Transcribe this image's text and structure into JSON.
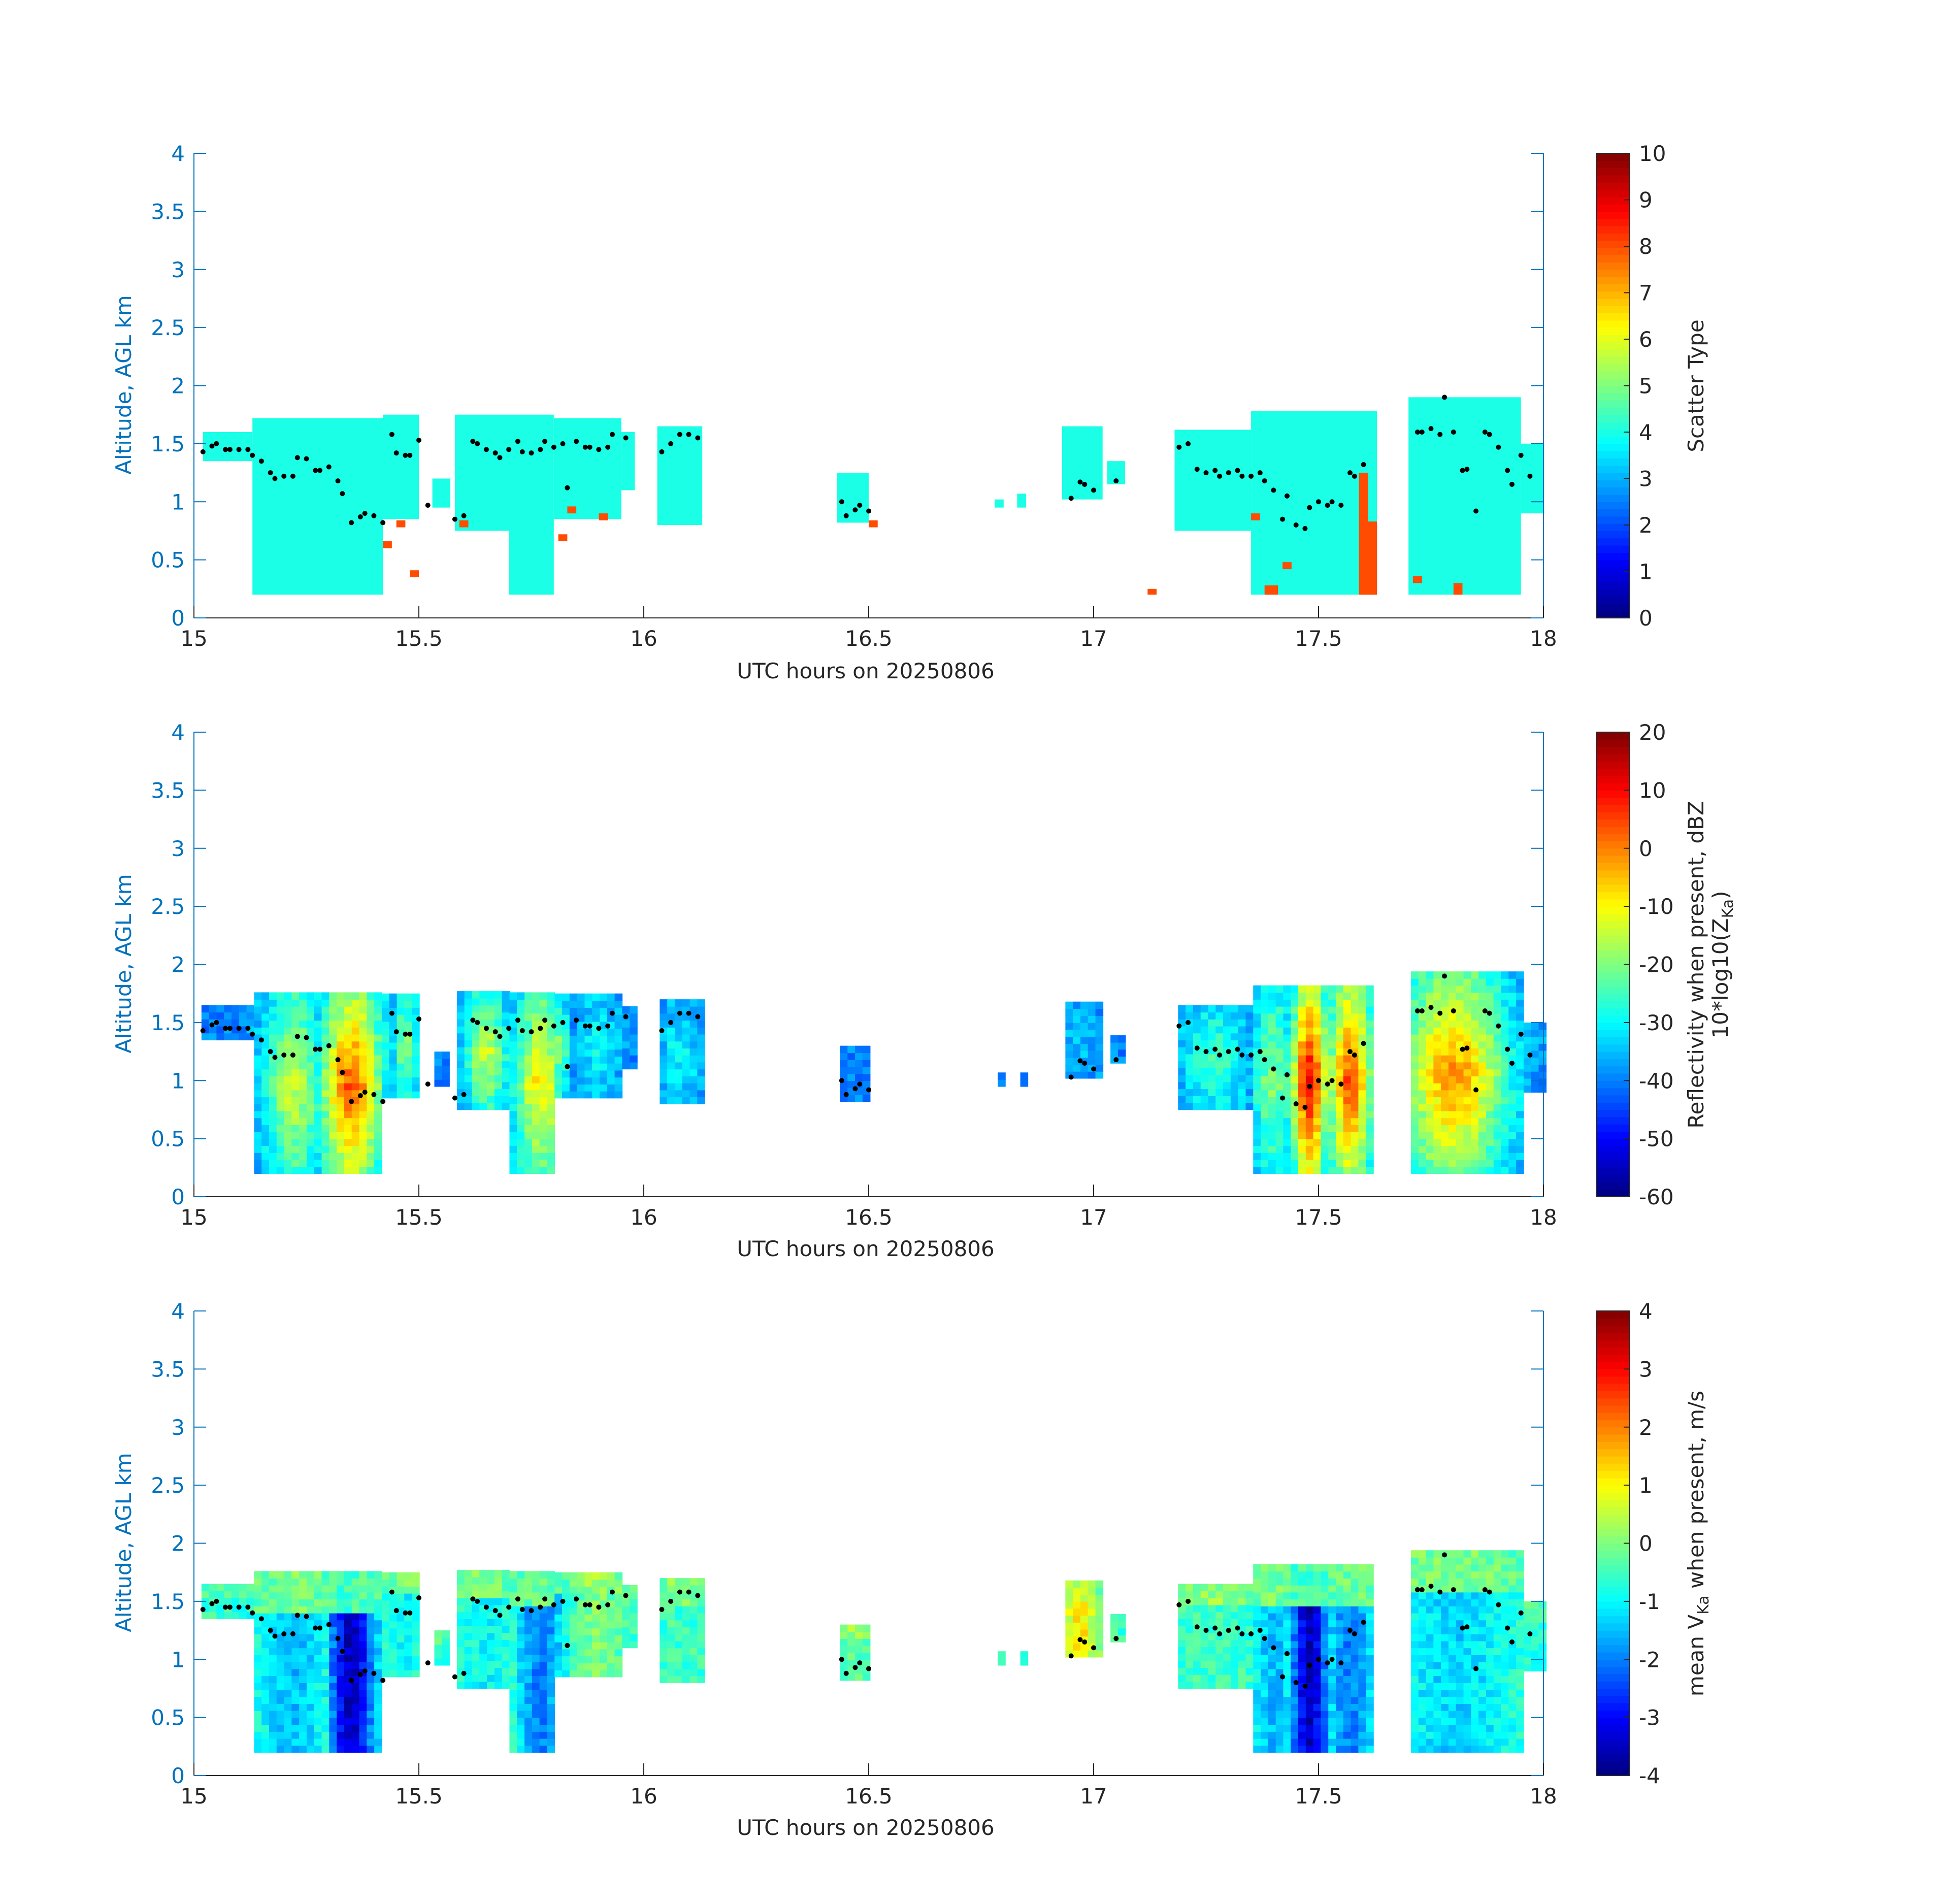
{
  "figure": {
    "xlabel": "UTC hours on 20250806",
    "ylabel": "Altitude, AGL km",
    "colormap": "jet",
    "axis_color": "#0072BD"
  },
  "chart_data": [
    {
      "type": "heatmap",
      "xlabel": "UTC hours on 20250806",
      "ylabel": "Altitude, AGL km",
      "xlim": [
        15,
        18
      ],
      "ylim": [
        0,
        4
      ],
      "xticks": [
        15,
        15.5,
        16,
        16.5,
        17,
        17.5,
        18
      ],
      "xtick_labels": [
        "15",
        "15.5",
        "16",
        "16.5",
        "17",
        "17.5",
        "18"
      ],
      "yticks": [
        0,
        0.5,
        1,
        1.5,
        2,
        2.5,
        3,
        3.5,
        4
      ],
      "ytick_labels": [
        "0",
        "0.5",
        "1",
        "1.5",
        "2",
        "2.5",
        "3",
        "3.5",
        "4"
      ],
      "colorbar": {
        "label": "Scatter Type",
        "range": [
          0,
          10
        ],
        "ticks": [
          0,
          1,
          2,
          3,
          4,
          5,
          6,
          7,
          8,
          9,
          10
        ],
        "tick_labels": [
          "0",
          "1",
          "2",
          "3",
          "4",
          "5",
          "6",
          "7",
          "8",
          "9",
          "10"
        ]
      },
      "cloud_regions": [
        {
          "t0": 15.02,
          "t1": 15.13,
          "base": 1.35,
          "top": 1.6,
          "value": 4
        },
        {
          "t0": 15.13,
          "t1": 15.42,
          "base": 0.2,
          "top": 1.72,
          "value": 4
        },
        {
          "t0": 15.42,
          "t1": 15.5,
          "base": 0.85,
          "top": 1.75,
          "value": 4
        },
        {
          "t0": 15.53,
          "t1": 15.57,
          "base": 0.95,
          "top": 1.2,
          "value": 4
        },
        {
          "t0": 15.58,
          "t1": 15.7,
          "base": 0.75,
          "top": 1.75,
          "value": 4
        },
        {
          "t0": 15.7,
          "t1": 15.8,
          "base": 0.2,
          "top": 1.75,
          "value": 4
        },
        {
          "t0": 15.8,
          "t1": 15.95,
          "base": 0.85,
          "top": 1.72,
          "value": 4
        },
        {
          "t0": 15.95,
          "t1": 15.98,
          "base": 1.1,
          "top": 1.6,
          "value": 4
        },
        {
          "t0": 16.03,
          "t1": 16.13,
          "base": 0.8,
          "top": 1.65,
          "value": 4
        },
        {
          "t0": 16.43,
          "t1": 16.5,
          "base": 0.82,
          "top": 1.25,
          "value": 4
        },
        {
          "t0": 16.78,
          "t1": 16.8,
          "base": 0.95,
          "top": 1.02,
          "value": 4
        },
        {
          "t0": 16.83,
          "t1": 16.85,
          "base": 0.95,
          "top": 1.07,
          "value": 4
        },
        {
          "t0": 16.93,
          "t1": 17.02,
          "base": 1.02,
          "top": 1.65,
          "value": 4
        },
        {
          "t0": 17.03,
          "t1": 17.07,
          "base": 1.15,
          "top": 1.35,
          "value": 4
        },
        {
          "t0": 17.18,
          "t1": 17.35,
          "base": 0.75,
          "top": 1.62,
          "value": 4
        },
        {
          "t0": 17.35,
          "t1": 17.63,
          "base": 0.2,
          "top": 1.78,
          "value": 4
        },
        {
          "t0": 17.7,
          "t1": 17.95,
          "base": 0.2,
          "top": 1.9,
          "value": 4
        },
        {
          "t0": 17.95,
          "t1": 18.0,
          "base": 0.9,
          "top": 1.5,
          "value": 4
        },
        {
          "t0": 17.59,
          "t1": 17.61,
          "base": 0.2,
          "top": 1.25,
          "value": 8
        },
        {
          "t0": 17.61,
          "t1": 17.63,
          "base": 0.2,
          "top": 0.83,
          "value": 8
        },
        {
          "t0": 17.38,
          "t1": 17.41,
          "base": 0.2,
          "top": 0.28,
          "value": 8
        },
        {
          "t0": 17.12,
          "t1": 17.14,
          "base": 0.2,
          "top": 0.25,
          "value": 8
        },
        {
          "t0": 15.42,
          "t1": 15.44,
          "base": 0.6,
          "top": 0.66,
          "value": 8
        },
        {
          "t0": 15.45,
          "t1": 15.47,
          "base": 0.78,
          "top": 0.84,
          "value": 8
        },
        {
          "t0": 15.48,
          "t1": 15.5,
          "base": 0.35,
          "top": 0.41,
          "value": 8
        },
        {
          "t0": 15.59,
          "t1": 15.61,
          "base": 0.78,
          "top": 0.84,
          "value": 8
        },
        {
          "t0": 15.81,
          "t1": 15.83,
          "base": 0.66,
          "top": 0.72,
          "value": 8
        },
        {
          "t0": 15.83,
          "t1": 15.85,
          "base": 0.9,
          "top": 0.96,
          "value": 8
        },
        {
          "t0": 15.9,
          "t1": 15.92,
          "base": 0.84,
          "top": 0.9,
          "value": 8
        },
        {
          "t0": 16.5,
          "t1": 16.52,
          "base": 0.78,
          "top": 0.84,
          "value": 8
        },
        {
          "t0": 17.35,
          "t1": 17.37,
          "base": 0.84,
          "top": 0.9,
          "value": 8
        },
        {
          "t0": 17.42,
          "t1": 17.44,
          "base": 0.42,
          "top": 0.48,
          "value": 8
        },
        {
          "t0": 17.71,
          "t1": 17.73,
          "base": 0.3,
          "top": 0.36,
          "value": 8
        },
        {
          "t0": 17.8,
          "t1": 17.82,
          "base": 0.2,
          "top": 0.3,
          "value": 8
        }
      ],
      "cloud_base_points": {
        "t": [
          15.02,
          15.04,
          15.05,
          15.07,
          15.08,
          15.1,
          15.12,
          15.13,
          15.15,
          15.17,
          15.18,
          15.2,
          15.22,
          15.23,
          15.25,
          15.27,
          15.28,
          15.3,
          15.32,
          15.33,
          15.35,
          15.37,
          15.38,
          15.4,
          15.42,
          15.44,
          15.45,
          15.47,
          15.48,
          15.5,
          15.52,
          15.58,
          15.6,
          15.62,
          15.63,
          15.65,
          15.67,
          15.68,
          15.7,
          15.72,
          15.73,
          15.75,
          15.77,
          15.78,
          15.8,
          15.82,
          15.83,
          15.85,
          15.87,
          15.88,
          15.9,
          15.92,
          15.93,
          15.96,
          16.04,
          16.06,
          16.08,
          16.1,
          16.12,
          16.44,
          16.45,
          16.47,
          16.48,
          16.5,
          16.95,
          16.97,
          16.98,
          17.0,
          17.05,
          17.19,
          17.21,
          17.23,
          17.25,
          17.27,
          17.28,
          17.3,
          17.32,
          17.33,
          17.35,
          17.37,
          17.38,
          17.4,
          17.42,
          17.43,
          17.45,
          17.47,
          17.48,
          17.5,
          17.52,
          17.53,
          17.55,
          17.57,
          17.58,
          17.6,
          17.72,
          17.73,
          17.75,
          17.77,
          17.78,
          17.8,
          17.82,
          17.83,
          17.85,
          17.87,
          17.88,
          17.9,
          17.92,
          17.93,
          17.95,
          17.97
        ],
        "alt": [
          1.43,
          1.48,
          1.5,
          1.45,
          1.45,
          1.45,
          1.45,
          1.4,
          1.35,
          1.25,
          1.2,
          1.22,
          1.22,
          1.38,
          1.37,
          1.27,
          1.27,
          1.3,
          1.18,
          1.07,
          0.82,
          0.87,
          0.9,
          0.88,
          0.82,
          1.58,
          1.42,
          1.4,
          1.4,
          1.53,
          0.97,
          0.85,
          0.88,
          1.52,
          1.5,
          1.45,
          1.42,
          1.38,
          1.45,
          1.52,
          1.43,
          1.42,
          1.45,
          1.52,
          1.47,
          1.5,
          1.12,
          1.52,
          1.47,
          1.47,
          1.45,
          1.47,
          1.58,
          1.55,
          1.43,
          1.5,
          1.58,
          1.58,
          1.55,
          1.0,
          0.88,
          0.93,
          0.97,
          0.92,
          1.03,
          1.17,
          1.15,
          1.1,
          1.18,
          1.47,
          1.5,
          1.28,
          1.25,
          1.27,
          1.22,
          1.25,
          1.27,
          1.22,
          1.22,
          1.25,
          1.18,
          1.1,
          0.85,
          1.05,
          0.8,
          0.77,
          0.95,
          1.0,
          0.97,
          1.0,
          0.97,
          1.25,
          1.22,
          1.32,
          1.6,
          1.6,
          1.63,
          1.58,
          1.9,
          1.6,
          1.27,
          1.28,
          0.92,
          1.6,
          1.58,
          1.47,
          1.27,
          1.15,
          1.4,
          1.22
        ]
      }
    },
    {
      "type": "heatmap",
      "xlabel": "UTC hours on 20250806",
      "ylabel": "Altitude, AGL km",
      "xlim": [
        15,
        18
      ],
      "ylim": [
        0,
        4
      ],
      "xticks": [
        15,
        15.5,
        16,
        16.5,
        17,
        17.5,
        18
      ],
      "xtick_labels": [
        "15",
        "15.5",
        "16",
        "16.5",
        "17",
        "17.5",
        "18"
      ],
      "yticks": [
        0,
        0.5,
        1,
        1.5,
        2,
        2.5,
        3,
        3.5,
        4
      ],
      "ytick_labels": [
        "0",
        "0.5",
        "1",
        "1.5",
        "2",
        "2.5",
        "3",
        "3.5",
        "4"
      ],
      "colorbar": {
        "label_line1": "Reflectivity when present, dBZ",
        "label_line2_main": "10*log10(Z",
        "label_line2_sub": "Ka",
        "label_line2_end": ")",
        "range": [
          -60,
          20
        ],
        "ticks": [
          -60,
          -50,
          -40,
          -30,
          -20,
          -10,
          0,
          10,
          20
        ],
        "tick_labels": [
          "-60",
          "-50",
          "-40",
          "-30",
          "-20",
          "-10",
          "0",
          "10",
          "20"
        ]
      },
      "cores": [
        {
          "tc": 15.22,
          "hw": 0.07,
          "peak": -15
        },
        {
          "tc": 15.35,
          "hw": 0.07,
          "peak": 2
        },
        {
          "tc": 15.47,
          "hw": 0.03,
          "peak": -20
        },
        {
          "tc": 15.65,
          "hw": 0.05,
          "peak": -15
        },
        {
          "tc": 15.77,
          "hw": 0.06,
          "peak": -10
        },
        {
          "tc": 15.9,
          "hw": 0.05,
          "peak": -30
        },
        {
          "tc": 16.08,
          "hw": 0.05,
          "peak": -30
        },
        {
          "tc": 16.47,
          "hw": 0.05,
          "peak": -40
        },
        {
          "tc": 16.97,
          "hw": 0.05,
          "peak": -35
        },
        {
          "tc": 17.27,
          "hw": 0.08,
          "peak": -25
        },
        {
          "tc": 17.4,
          "hw": 0.05,
          "peak": -20
        },
        {
          "tc": 17.48,
          "hw": 0.04,
          "peak": 10
        },
        {
          "tc": 17.57,
          "hw": 0.05,
          "peak": 3
        },
        {
          "tc": 17.8,
          "hw": 0.12,
          "peak": -3
        }
      ],
      "cloud_base_points": {
        "same_as_panel": 0
      }
    },
    {
      "type": "heatmap",
      "xlabel": "UTC hours on 20250806",
      "ylabel": "Altitude, AGL km",
      "xlim": [
        15,
        18
      ],
      "ylim": [
        0,
        4
      ],
      "xticks": [
        15,
        15.5,
        16,
        16.5,
        17,
        17.5,
        18
      ],
      "xtick_labels": [
        "15",
        "15.5",
        "16",
        "16.5",
        "17",
        "17.5",
        "18"
      ],
      "yticks": [
        0,
        0.5,
        1,
        1.5,
        2,
        2.5,
        3,
        3.5,
        4
      ],
      "ytick_labels": [
        "0",
        "0.5",
        "1",
        "1.5",
        "2",
        "2.5",
        "3",
        "3.5",
        "4"
      ],
      "colorbar": {
        "label_main": "mean V",
        "label_sub": "Ka",
        "label_end": " when present, m/s",
        "range": [
          -4,
          4
        ],
        "ticks": [
          -4,
          -3,
          -2,
          -1,
          0,
          1,
          2,
          3,
          4
        ],
        "tick_labels": [
          "-4",
          "-3",
          "-2",
          "-1",
          "0",
          "1",
          "2",
          "3",
          "4"
        ]
      },
      "cores": [
        {
          "tc": 15.22,
          "hw": 0.07,
          "peak": -1.5
        },
        {
          "tc": 15.35,
          "hw": 0.05,
          "peak": -3.5
        },
        {
          "tc": 15.47,
          "hw": 0.03,
          "peak": -1.0
        },
        {
          "tc": 15.65,
          "hw": 0.05,
          "peak": -1.0
        },
        {
          "tc": 15.77,
          "hw": 0.05,
          "peak": -2.0
        },
        {
          "tc": 15.9,
          "hw": 0.05,
          "peak": 0.0
        },
        {
          "tc": 16.08,
          "hw": 0.05,
          "peak": -0.5
        },
        {
          "tc": 16.47,
          "hw": 0.05,
          "peak": -0.3
        },
        {
          "tc": 16.97,
          "hw": 0.04,
          "peak": 1.2
        },
        {
          "tc": 17.27,
          "hw": 0.08,
          "peak": -0.5
        },
        {
          "tc": 17.4,
          "hw": 0.05,
          "peak": -1.5
        },
        {
          "tc": 17.48,
          "hw": 0.04,
          "peak": -3.5
        },
        {
          "tc": 17.57,
          "hw": 0.05,
          "peak": -2.0
        },
        {
          "tc": 17.8,
          "hw": 0.12,
          "peak": -1.3
        }
      ],
      "cloud_base_points": {
        "same_as_panel": 0
      }
    }
  ]
}
